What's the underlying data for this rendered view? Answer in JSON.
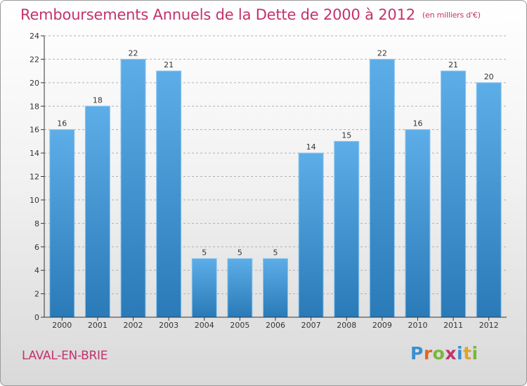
{
  "title": "Remboursements Annuels de la Dette de 2000 à 2012",
  "title_unit": "(en milliers d'€)",
  "location": "LAVAL-EN-BRIE",
  "logo": {
    "text": "Proxiti",
    "letters": [
      {
        "ch": "P",
        "color": "#3a8fd0"
      },
      {
        "ch": "r",
        "color": "#e0652b"
      },
      {
        "ch": "o",
        "color": "#7ab63a"
      },
      {
        "ch": "x",
        "color": "#c2336c"
      },
      {
        "ch": "i",
        "color": "#3a8fd0"
      },
      {
        "ch": "t",
        "color": "#e0a32b"
      },
      {
        "ch": "i",
        "color": "#7ab63a"
      }
    ]
  },
  "colors": {
    "title": "#c2336c",
    "bar_top": "#5dade8",
    "bar_bottom": "#2a7ab8",
    "grid": "#b0b0b0",
    "axis": "#333333"
  },
  "chart_data": {
    "type": "bar",
    "title": "Remboursements Annuels de la Dette de 2000 à 2012",
    "xlabel": "",
    "ylabel": "",
    "categories": [
      "2000",
      "2001",
      "2002",
      "2003",
      "2004",
      "2005",
      "2006",
      "2007",
      "2008",
      "2009",
      "2010",
      "2011",
      "2012"
    ],
    "values": [
      16,
      18,
      22,
      21,
      5,
      5,
      5,
      14,
      15,
      22,
      16,
      21,
      20
    ],
    "ylim": [
      0,
      24
    ],
    "yticks": [
      0,
      2,
      4,
      6,
      8,
      10,
      12,
      14,
      16,
      18,
      20,
      22,
      24
    ],
    "grid": "horizontal-dashed"
  }
}
